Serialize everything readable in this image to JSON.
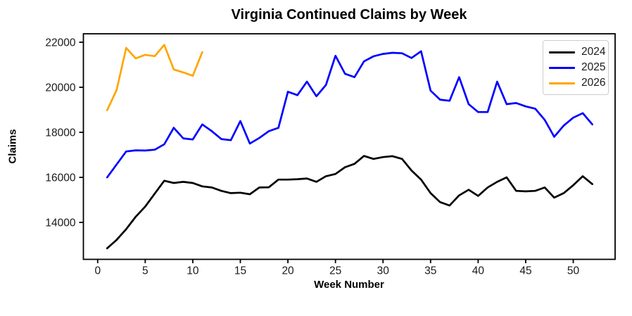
{
  "chart_data": {
    "type": "line",
    "title": "Virginia Continued Claims by Week",
    "xlabel": "Week Number",
    "ylabel": "Claims",
    "xlim": [
      -1.5,
      54.4
    ],
    "ylim": [
      12360,
      22375
    ],
    "xticks": [
      0,
      5,
      10,
      15,
      20,
      25,
      30,
      35,
      40,
      45,
      50
    ],
    "yticks": [
      14000,
      16000,
      18000,
      20000,
      22000
    ],
    "grid": false,
    "legend_position": "upper right",
    "series": [
      {
        "name": "2024",
        "color": "#000000",
        "x": [
          1,
          2,
          3,
          4,
          5,
          6,
          7,
          8,
          9,
          10,
          11,
          12,
          13,
          14,
          15,
          16,
          17,
          18,
          19,
          20,
          21,
          22,
          23,
          24,
          25,
          26,
          27,
          28,
          29,
          30,
          31,
          32,
          33,
          34,
          35,
          36,
          37,
          38,
          39,
          40,
          41,
          42,
          43,
          44,
          45,
          46,
          47,
          48,
          49,
          50,
          51,
          52
        ],
        "values": [
          12850,
          13230,
          13700,
          14250,
          14700,
          15280,
          15850,
          15750,
          15800,
          15750,
          15600,
          15550,
          15400,
          15300,
          15320,
          15250,
          15550,
          15560,
          15900,
          15900,
          15920,
          15950,
          15800,
          16050,
          16150,
          16450,
          16600,
          16950,
          16820,
          16900,
          16940,
          16820,
          16300,
          15900,
          15300,
          14900,
          14750,
          15200,
          15450,
          15175,
          15550,
          15800,
          16000,
          15400,
          15380,
          15400,
          15550,
          15100,
          15300,
          15650,
          16050,
          15700
        ]
      },
      {
        "name": "2025",
        "color": "#0000ff",
        "x": [
          1,
          2,
          3,
          4,
          5,
          6,
          7,
          8,
          9,
          10,
          11,
          12,
          13,
          14,
          15,
          16,
          17,
          18,
          19,
          20,
          21,
          22,
          23,
          24,
          25,
          26,
          27,
          28,
          29,
          30,
          31,
          32,
          33,
          34,
          35,
          36,
          37,
          38,
          39,
          40,
          41,
          42,
          43,
          44,
          45,
          46,
          47,
          48,
          49,
          50,
          51,
          52
        ],
        "values": [
          16000,
          16580,
          17150,
          17200,
          17190,
          17230,
          17470,
          18200,
          17730,
          17680,
          18350,
          18050,
          17700,
          17650,
          18500,
          17500,
          17750,
          18050,
          18200,
          19800,
          19650,
          20250,
          19600,
          20100,
          21400,
          20600,
          20450,
          21150,
          21375,
          21480,
          21530,
          21510,
          21300,
          21600,
          19850,
          19450,
          19400,
          20450,
          19250,
          18900,
          18900,
          20250,
          19250,
          19300,
          19150,
          19050,
          18550,
          17800,
          18300,
          18650,
          18850,
          18350
        ]
      },
      {
        "name": "2026",
        "color": "#ffa500",
        "x": [
          1,
          2,
          3,
          4,
          5,
          6,
          7,
          8,
          9,
          10,
          11
        ],
        "values": [
          18980,
          19890,
          21750,
          21280,
          21440,
          21380,
          21880,
          20790,
          20660,
          20510,
          21560
        ]
      }
    ]
  }
}
